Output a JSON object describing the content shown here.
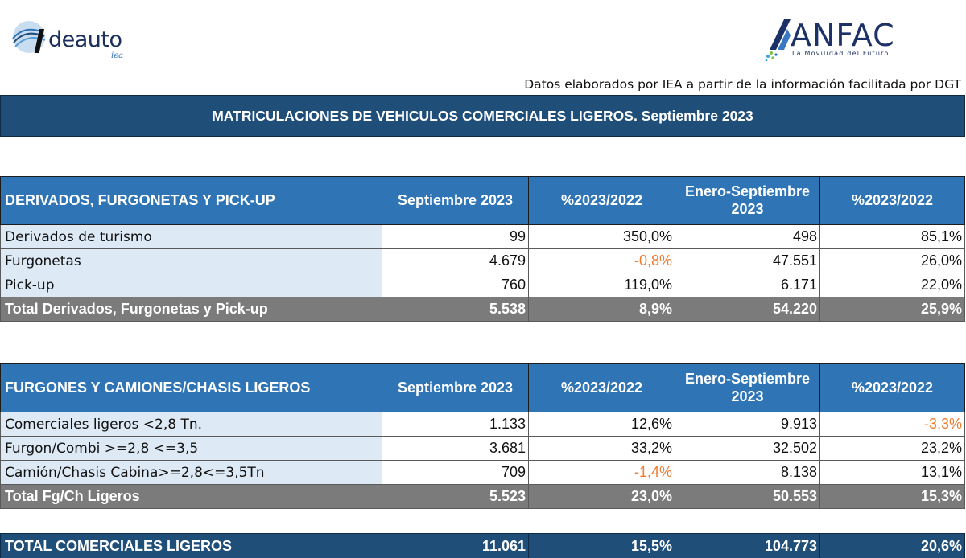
{
  "logos": {
    "ideauto_text": "deauto",
    "ideauto_sub": "iea",
    "anfac_text": "ANFAC",
    "anfac_tagline": "La Movilidad del Futuro"
  },
  "source_note": "Datos elaborados por IEA a partir de la información facilitada por DGT",
  "title": "MATRICULACIONES DE VEHICULOS COMERCIALES LIGEROS. Septiembre 2023",
  "table1": {
    "headers": [
      "DERIVADOS, FURGONETAS Y PICK-UP",
      "Septiembre 2023",
      "%2023/2022",
      "Enero-Septiembre 2023",
      "%2023/2022"
    ],
    "rows": [
      [
        "Derivados de turismo",
        "99",
        "350,0%",
        "498",
        "85,1%"
      ],
      [
        "Furgonetas",
        "4.679",
        "-0,8%",
        "47.551",
        "26,0%"
      ],
      [
        "Pick-up",
        "760",
        "119,0%",
        "6.171",
        "22,0%"
      ]
    ],
    "total": [
      "Total Derivados, Furgonetas y Pick-up",
      "5.538",
      "8,9%",
      "54.220",
      "25,9%"
    ]
  },
  "table2": {
    "headers": [
      "FURGONES Y CAMIONES/CHASIS LIGEROS",
      "Septiembre 2023",
      "%2023/2022",
      "Enero-Septiembre 2023",
      "%2023/2022"
    ],
    "rows": [
      [
        "Comerciales ligeros <2,8 Tn.",
        "1.133",
        "12,6%",
        "9.913",
        "-3,3%"
      ],
      [
        "Furgon/Combi >=2,8 <=3,5",
        "3.681",
        "33,2%",
        "32.502",
        "23,2%"
      ],
      [
        "Camión/Chasis Cabina>=2,8<=3,5Tn",
        "709",
        "-1,4%",
        "8.138",
        "13,1%"
      ]
    ],
    "total": [
      "Total Fg/Ch Ligeros",
      "5.523",
      "23,0%",
      "50.553",
      "15,3%"
    ]
  },
  "grand_total": [
    "TOTAL COMERCIALES LIGEROS",
    "11.061",
    "15,5%",
    "104.773",
    "20,6%"
  ],
  "colors": {
    "title_bg": "#1f4e79",
    "header_bg": "#2f75b5",
    "label_bg": "#dde9f5",
    "total_bg": "#7b7b7b",
    "negative": "#ed7d31"
  }
}
